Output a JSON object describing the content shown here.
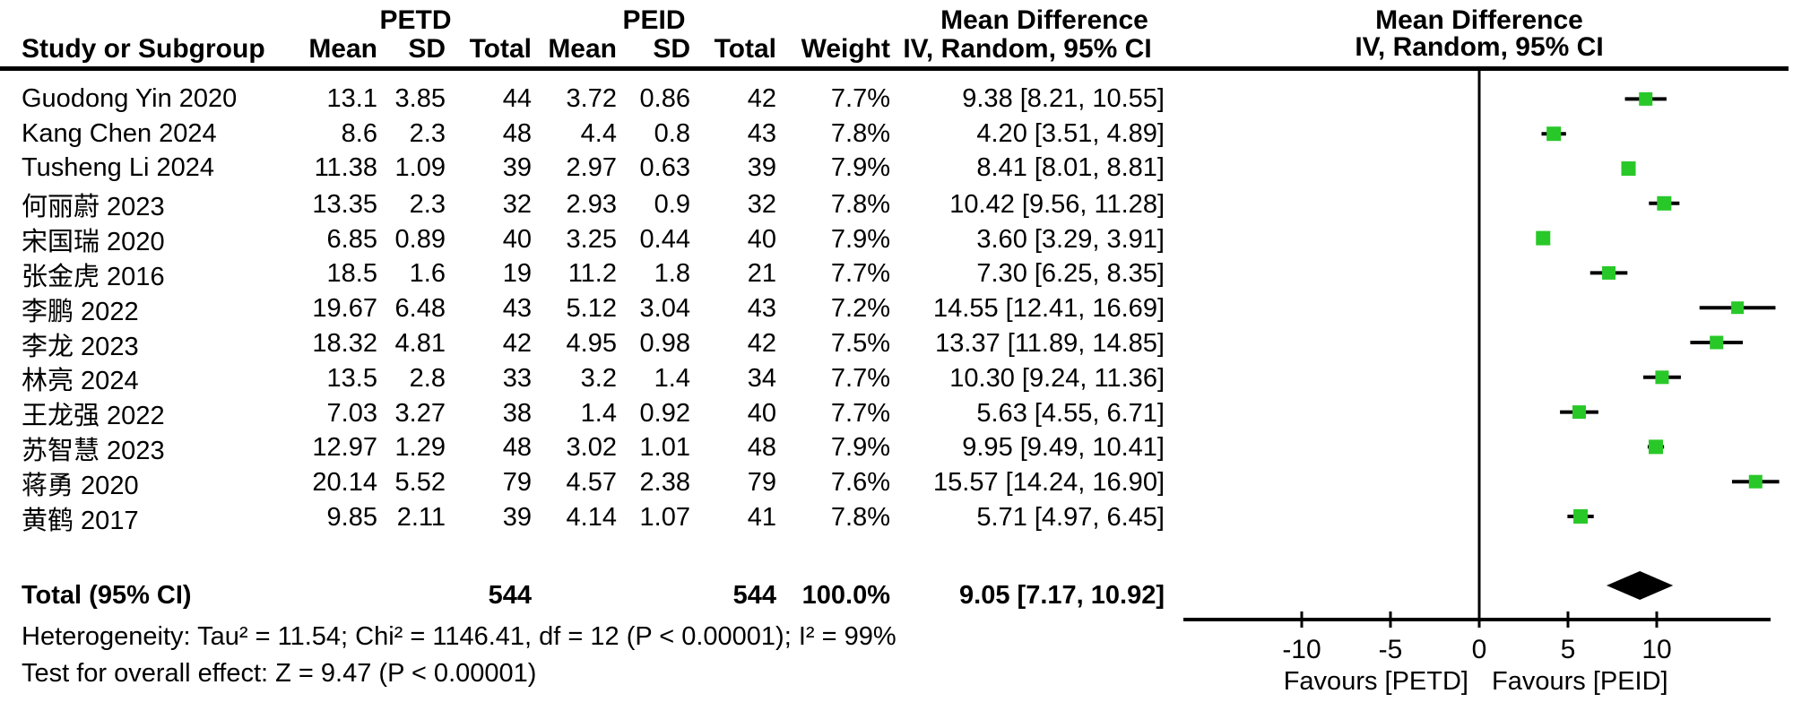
{
  "header": {
    "group1": "PETD",
    "group2": "PEID",
    "col_study": "Study or Subgroup",
    "col_mean": "Mean",
    "col_sd": "SD",
    "col_total": "Total",
    "col_weight": "Weight",
    "md_title": "Mean Difference",
    "md_method": "IV, Random, 95% CI"
  },
  "footer": {
    "heterogeneity": "Heterogeneity: Tau² = 11.54; Chi² = 1146.41, df = 12 (P < 0.00001); I² = 99%",
    "overall_effect": "Test for overall effect: Z = 9.47 (P < 0.00001)"
  },
  "chart_data": {
    "type": "forest",
    "effect_measure": "Mean Difference",
    "method": "IV, Random, 95% CI",
    "x_ticks": [
      -10,
      -5,
      0,
      5,
      10
    ],
    "xlim": [
      -16.7,
      16.4
    ],
    "grid": false,
    "favours_left": "Favours [PETD]",
    "favours_right": "Favours [PEID]",
    "marker_color": "#28c828",
    "ci_color": "#000000",
    "diamond_color": "#000000",
    "studies": [
      {
        "label": "Guodong Yin 2020",
        "mean1": "13.1",
        "sd1": "3.85",
        "n1": "44",
        "mean2": "3.72",
        "sd2": "0.86",
        "n2": "42",
        "weight": "7.7%",
        "weight_val": 7.7,
        "md": 9.38,
        "lo": 8.21,
        "hi": 10.55,
        "ci_text": "9.38 [8.21, 10.55]"
      },
      {
        "label": "Kang Chen 2024",
        "mean1": "8.6",
        "sd1": "2.3",
        "n1": "48",
        "mean2": "4.4",
        "sd2": "0.8",
        "n2": "43",
        "weight": "7.8%",
        "weight_val": 7.8,
        "md": 4.2,
        "lo": 3.51,
        "hi": 4.89,
        "ci_text": "4.20 [3.51, 4.89]"
      },
      {
        "label": "Tusheng Li 2024",
        "mean1": "11.38",
        "sd1": "1.09",
        "n1": "39",
        "mean2": "2.97",
        "sd2": "0.63",
        "n2": "39",
        "weight": "7.9%",
        "weight_val": 7.9,
        "md": 8.41,
        "lo": 8.01,
        "hi": 8.81,
        "ci_text": "8.41 [8.01, 8.81]"
      },
      {
        "label": "何丽蔚 2023",
        "mean1": "13.35",
        "sd1": "2.3",
        "n1": "32",
        "mean2": "2.93",
        "sd2": "0.9",
        "n2": "32",
        "weight": "7.8%",
        "weight_val": 7.8,
        "md": 10.42,
        "lo": 9.56,
        "hi": 11.28,
        "ci_text": "10.42 [9.56, 11.28]"
      },
      {
        "label": "宋国瑞 2020",
        "mean1": "6.85",
        "sd1": "0.89",
        "n1": "40",
        "mean2": "3.25",
        "sd2": "0.44",
        "n2": "40",
        "weight": "7.9%",
        "weight_val": 7.9,
        "md": 3.6,
        "lo": 3.29,
        "hi": 3.91,
        "ci_text": "3.60 [3.29, 3.91]"
      },
      {
        "label": "张金虎 2016",
        "mean1": "18.5",
        "sd1": "1.6",
        "n1": "19",
        "mean2": "11.2",
        "sd2": "1.8",
        "n2": "21",
        "weight": "7.7%",
        "weight_val": 7.7,
        "md": 7.3,
        "lo": 6.25,
        "hi": 8.35,
        "ci_text": "7.30 [6.25, 8.35]"
      },
      {
        "label": "李鹏 2022",
        "mean1": "19.67",
        "sd1": "6.48",
        "n1": "43",
        "mean2": "5.12",
        "sd2": "3.04",
        "n2": "43",
        "weight": "7.2%",
        "weight_val": 7.2,
        "md": 14.55,
        "lo": 12.41,
        "hi": 16.69,
        "ci_text": "14.55 [12.41, 16.69]"
      },
      {
        "label": "李龙 2023",
        "mean1": "18.32",
        "sd1": "4.81",
        "n1": "42",
        "mean2": "4.95",
        "sd2": "0.98",
        "n2": "42",
        "weight": "7.5%",
        "weight_val": 7.5,
        "md": 13.37,
        "lo": 11.89,
        "hi": 14.85,
        "ci_text": "13.37 [11.89, 14.85]"
      },
      {
        "label": "林亮 2024",
        "mean1": "13.5",
        "sd1": "2.8",
        "n1": "33",
        "mean2": "3.2",
        "sd2": "1.4",
        "n2": "34",
        "weight": "7.7%",
        "weight_val": 7.7,
        "md": 10.3,
        "lo": 9.24,
        "hi": 11.36,
        "ci_text": "10.30 [9.24, 11.36]"
      },
      {
        "label": "王龙强 2022",
        "mean1": "7.03",
        "sd1": "3.27",
        "n1": "38",
        "mean2": "1.4",
        "sd2": "0.92",
        "n2": "40",
        "weight": "7.7%",
        "weight_val": 7.7,
        "md": 5.63,
        "lo": 4.55,
        "hi": 6.71,
        "ci_text": "5.63 [4.55, 6.71]"
      },
      {
        "label": "苏智慧 2023",
        "mean1": "12.97",
        "sd1": "1.29",
        "n1": "48",
        "mean2": "3.02",
        "sd2": "1.01",
        "n2": "48",
        "weight": "7.9%",
        "weight_val": 7.9,
        "md": 9.95,
        "lo": 9.49,
        "hi": 10.41,
        "ci_text": "9.95 [9.49, 10.41]"
      },
      {
        "label": "蒋勇 2020",
        "mean1": "20.14",
        "sd1": "5.52",
        "n1": "79",
        "mean2": "4.57",
        "sd2": "2.38",
        "n2": "79",
        "weight": "7.6%",
        "weight_val": 7.6,
        "md": 15.57,
        "lo": 14.24,
        "hi": 16.9,
        "ci_text": "15.57 [14.24, 16.90]"
      },
      {
        "label": "黄鹤 2017",
        "mean1": "9.85",
        "sd1": "2.11",
        "n1": "39",
        "mean2": "4.14",
        "sd2": "1.07",
        "n2": "41",
        "weight": "7.8%",
        "weight_val": 7.8,
        "md": 5.71,
        "lo": 4.97,
        "hi": 6.45,
        "ci_text": "5.71 [4.97, 6.45]"
      }
    ],
    "total": {
      "label": "Total (95% CI)",
      "n1": "544",
      "n2": "544",
      "weight": "100.0%",
      "md": 9.05,
      "lo": 7.17,
      "hi": 10.92,
      "ci_text": "9.05 [7.17, 10.92]"
    }
  }
}
